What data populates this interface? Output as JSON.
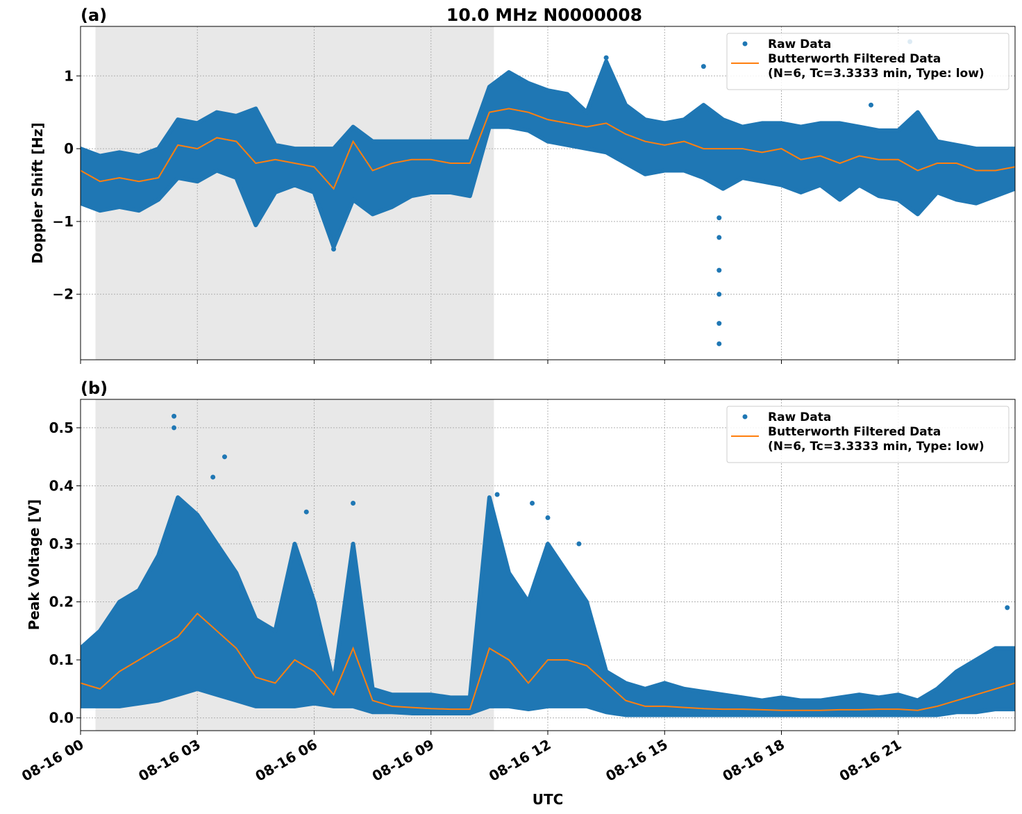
{
  "chart_data": [
    {
      "type": "scatter",
      "panel_label": "(a)",
      "title": "10.0 MHz N0000008",
      "xlabel": "",
      "ylabel": "Doppler Shift [Hz]",
      "ylim": [
        -2.9,
        1.68
      ],
      "yticks": [
        -2,
        -1,
        0,
        1
      ],
      "ytick_labels": [
        "−2",
        "−1",
        "0",
        "1"
      ],
      "grid": true,
      "legend_placement": "top-right",
      "shaded_interval": [
        "00:23",
        "10:37"
      ],
      "times": [
        "00:00",
        "00:30",
        "01:00",
        "01:30",
        "02:00",
        "02:30",
        "03:00",
        "03:30",
        "04:00",
        "04:30",
        "05:00",
        "05:30",
        "06:00",
        "06:30",
        "07:00",
        "07:30",
        "08:00",
        "08:30",
        "09:00",
        "09:30",
        "10:00",
        "10:30",
        "11:00",
        "11:30",
        "12:00",
        "12:30",
        "13:00",
        "13:30",
        "14:00",
        "14:30",
        "15:00",
        "15:30",
        "16:00",
        "16:30",
        "17:00",
        "17:30",
        "18:00",
        "18:30",
        "19:00",
        "19:30",
        "20:00",
        "20:30",
        "21:00",
        "21:30",
        "22:00",
        "22:30",
        "23:00",
        "23:30",
        "24:00"
      ],
      "series": [
        {
          "name": "Raw Data",
          "kind": "scatter-band",
          "color": "#1f77b4",
          "upper": [
            0.0,
            -0.1,
            -0.05,
            -0.1,
            0.0,
            0.4,
            0.35,
            0.5,
            0.45,
            0.55,
            0.05,
            0.0,
            0.0,
            0.0,
            0.3,
            0.1,
            0.1,
            0.1,
            0.1,
            0.1,
            0.1,
            0.85,
            1.05,
            0.9,
            0.8,
            0.75,
            0.5,
            1.2,
            0.6,
            0.4,
            0.35,
            0.4,
            0.6,
            0.4,
            0.3,
            0.35,
            0.35,
            0.3,
            0.35,
            0.35,
            0.3,
            0.25,
            0.25,
            0.5,
            0.1,
            0.05,
            0.0,
            0.0,
            0.0
          ],
          "lower": [
            -0.75,
            -0.85,
            -0.8,
            -0.85,
            -0.7,
            -0.4,
            -0.45,
            -0.3,
            -0.4,
            -1.05,
            -0.6,
            -0.5,
            -0.6,
            -1.35,
            -0.7,
            -0.9,
            -0.8,
            -0.65,
            -0.6,
            -0.6,
            -0.65,
            0.3,
            0.3,
            0.25,
            0.1,
            0.05,
            0.0,
            -0.05,
            -0.2,
            -0.35,
            -0.3,
            -0.3,
            -0.4,
            -0.55,
            -0.4,
            -0.45,
            -0.5,
            -0.6,
            -0.5,
            -0.7,
            -0.5,
            -0.65,
            -0.7,
            -0.9,
            -0.6,
            -0.7,
            -0.75,
            -0.65,
            -0.55
          ],
          "outliers": [
            [
              "16:24",
              -0.95
            ],
            [
              "16:24",
              -1.22
            ],
            [
              "16:24",
              -1.67
            ],
            [
              "16:24",
              -2.0
            ],
            [
              "16:24",
              -2.4
            ],
            [
              "16:24",
              -2.68
            ],
            [
              "21:18",
              1.47
            ],
            [
              "13:30",
              1.25
            ],
            [
              "16:00",
              1.13
            ],
            [
              "20:18",
              0.6
            ],
            [
              "06:30",
              -1.38
            ]
          ]
        },
        {
          "name": "Butterworth Filtered Data",
          "name_line2": "(N=6, Tc=3.3333 min, Type: low)",
          "kind": "line",
          "color": "#ff7f0e",
          "values": [
            -0.3,
            -0.45,
            -0.4,
            -0.45,
            -0.4,
            0.05,
            0.0,
            0.15,
            0.1,
            -0.2,
            -0.15,
            -0.2,
            -0.25,
            -0.55,
            0.1,
            -0.3,
            -0.2,
            -0.15,
            -0.15,
            -0.2,
            -0.2,
            0.5,
            0.55,
            0.5,
            0.4,
            0.35,
            0.3,
            0.35,
            0.2,
            0.1,
            0.05,
            0.1,
            0.0,
            0.0,
            0.0,
            -0.05,
            0.0,
            -0.15,
            -0.1,
            -0.2,
            -0.1,
            -0.15,
            -0.15,
            -0.3,
            -0.2,
            -0.2,
            -0.3,
            -0.3,
            -0.25
          ]
        }
      ]
    },
    {
      "type": "scatter",
      "panel_label": "(b)",
      "xlabel": "UTC",
      "ylabel": "Peak Voltage [V]",
      "ylim": [
        -0.022,
        0.549
      ],
      "yticks": [
        0.0,
        0.1,
        0.2,
        0.3,
        0.4,
        0.5
      ],
      "ytick_labels": [
        "0.0",
        "0.1",
        "0.2",
        "0.3",
        "0.4",
        "0.5"
      ],
      "xlim": [
        "08-16 00:00",
        "08-17 00:00"
      ],
      "xtick_hours": [
        0,
        3,
        6,
        9,
        12,
        15,
        18,
        21
      ],
      "xtick_labels": [
        "08-16 00",
        "08-16 03",
        "08-16 06",
        "08-16 09",
        "08-16 12",
        "08-16 15",
        "08-16 18",
        "08-16 21"
      ],
      "grid": true,
      "legend_placement": "top-right",
      "shaded_interval": [
        "00:23",
        "10:37"
      ],
      "times": [
        "00:00",
        "00:30",
        "01:00",
        "01:30",
        "02:00",
        "02:30",
        "03:00",
        "03:30",
        "04:00",
        "04:30",
        "05:00",
        "05:30",
        "06:00",
        "06:30",
        "07:00",
        "07:30",
        "08:00",
        "08:30",
        "09:00",
        "09:30",
        "10:00",
        "10:30",
        "11:00",
        "11:30",
        "12:00",
        "12:30",
        "13:00",
        "13:30",
        "14:00",
        "14:30",
        "15:00",
        "15:30",
        "16:00",
        "16:30",
        "17:00",
        "17:30",
        "18:00",
        "18:30",
        "19:00",
        "19:30",
        "20:00",
        "20:30",
        "21:00",
        "21:30",
        "22:00",
        "22:30",
        "23:00",
        "23:30",
        "24:00"
      ],
      "series": [
        {
          "name": "Raw Data",
          "kind": "scatter-band",
          "color": "#1f77b4",
          "upper": [
            0.12,
            0.15,
            0.2,
            0.22,
            0.28,
            0.38,
            0.35,
            0.3,
            0.25,
            0.17,
            0.15,
            0.3,
            0.2,
            0.06,
            0.3,
            0.05,
            0.04,
            0.04,
            0.04,
            0.035,
            0.035,
            0.38,
            0.25,
            0.2,
            0.3,
            0.25,
            0.2,
            0.08,
            0.06,
            0.05,
            0.06,
            0.05,
            0.045,
            0.04,
            0.035,
            0.03,
            0.035,
            0.03,
            0.03,
            0.035,
            0.04,
            0.035,
            0.04,
            0.03,
            0.05,
            0.08,
            0.1,
            0.12,
            0.12
          ],
          "lower": [
            0.02,
            0.02,
            0.02,
            0.025,
            0.03,
            0.04,
            0.05,
            0.04,
            0.03,
            0.02,
            0.02,
            0.02,
            0.025,
            0.02,
            0.02,
            0.01,
            0.01,
            0.008,
            0.008,
            0.008,
            0.008,
            0.02,
            0.02,
            0.015,
            0.02,
            0.02,
            0.02,
            0.01,
            0.005,
            0.005,
            0.005,
            0.005,
            0.005,
            0.005,
            0.005,
            0.005,
            0.005,
            0.005,
            0.005,
            0.005,
            0.005,
            0.005,
            0.005,
            0.005,
            0.005,
            0.01,
            0.01,
            0.015,
            0.015
          ],
          "outliers": [
            [
              "02:24",
              0.52
            ],
            [
              "02:24",
              0.5
            ],
            [
              "03:42",
              0.45
            ],
            [
              "03:24",
              0.415
            ],
            [
              "05:48",
              0.355
            ],
            [
              "07:00",
              0.37
            ],
            [
              "10:42",
              0.385
            ],
            [
              "11:36",
              0.37
            ],
            [
              "12:00",
              0.345
            ],
            [
              "12:48",
              0.3
            ],
            [
              "23:48",
              0.19
            ]
          ]
        },
        {
          "name": "Butterworth Filtered Data",
          "name_line2": "(N=6, Tc=3.3333 min, Type: low)",
          "kind": "line",
          "color": "#ff7f0e",
          "values": [
            0.06,
            0.05,
            0.08,
            0.1,
            0.12,
            0.14,
            0.18,
            0.15,
            0.12,
            0.07,
            0.06,
            0.1,
            0.08,
            0.04,
            0.12,
            0.03,
            0.02,
            0.018,
            0.016,
            0.015,
            0.015,
            0.12,
            0.1,
            0.06,
            0.1,
            0.1,
            0.09,
            0.06,
            0.03,
            0.02,
            0.02,
            0.018,
            0.016,
            0.015,
            0.015,
            0.014,
            0.013,
            0.013,
            0.013,
            0.014,
            0.014,
            0.015,
            0.015,
            0.013,
            0.02,
            0.03,
            0.04,
            0.05,
            0.06
          ]
        }
      ]
    }
  ]
}
